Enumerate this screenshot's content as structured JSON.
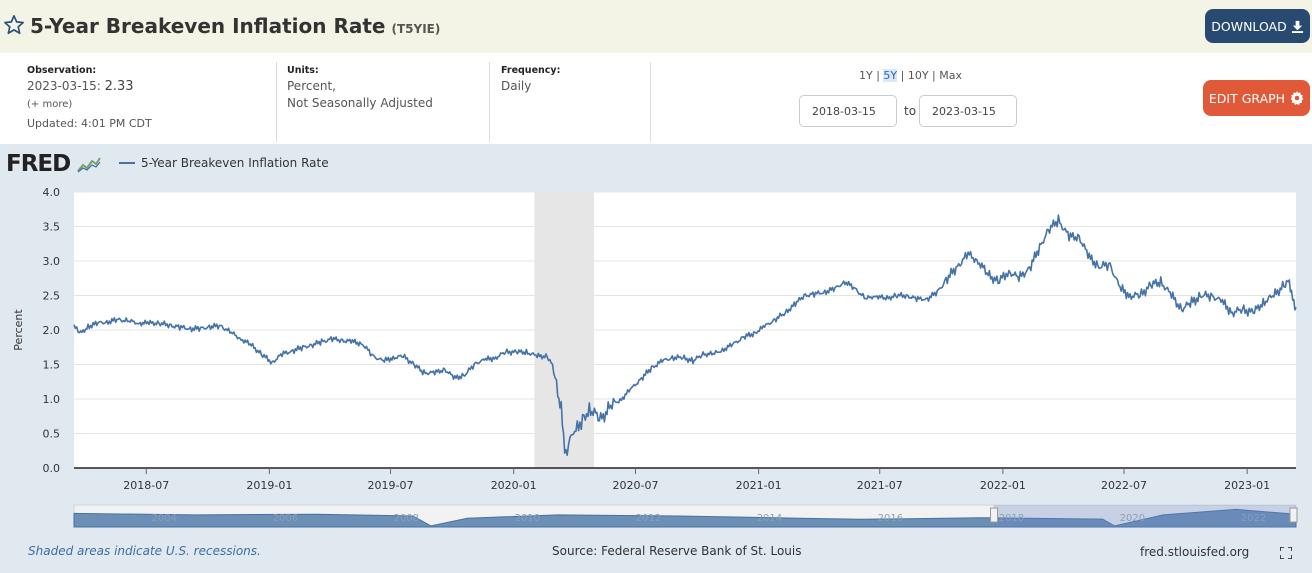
{
  "header": {
    "title": "5-Year Breakeven Inflation Rate",
    "series_id": "(T5YIE)",
    "download_label": "DOWNLOAD",
    "icons": {
      "favorite": "star-icon",
      "download": "download-icon"
    }
  },
  "info": {
    "observation_label": "Observation:",
    "observation_date": "2023-03-15:",
    "observation_value": "2.33",
    "more_link": "(+ more)",
    "updated": "Updated: 4:01 PM CDT",
    "units_label": "Units:",
    "units_line1": "Percent,",
    "units_line2": "Not Seasonally Adjusted",
    "frequency_label": "Frequency:",
    "frequency_value": "Daily"
  },
  "range_selector": {
    "options": [
      "1Y",
      "5Y",
      "10Y",
      "Max"
    ],
    "selected": "5Y",
    "start_date": "2018-03-15",
    "end_date": "2023-03-15",
    "to_label": "to"
  },
  "edit_graph_label": "EDIT GRAPH",
  "logo_text": "FRED",
  "footer": {
    "recession_note": "Shaded areas indicate U.S. recessions.",
    "source": "Source: Federal Reserve Bank of St. Louis",
    "site": "fred.stlouisfed.org"
  },
  "colors": {
    "series": "#4572a7",
    "download_button": "#294a70",
    "edit_button": "#e05a3a",
    "header_bg": "#f4f4e6",
    "recession": "#e6e6e6"
  },
  "chart_data": {
    "type": "line",
    "title": "",
    "xlabel": "",
    "ylabel": "Percent",
    "ylim": [
      0,
      4
    ],
    "yticks": [
      0.0,
      0.5,
      1.0,
      1.5,
      2.0,
      2.5,
      3.0,
      3.5,
      4.0
    ],
    "xlim": [
      "2018-03-15",
      "2023-03-15"
    ],
    "xticks": [
      "2018-07",
      "2019-01",
      "2019-07",
      "2020-01",
      "2020-07",
      "2021-01",
      "2021-07",
      "2022-01",
      "2022-07",
      "2023-01"
    ],
    "grid": true,
    "legend_placement": "top-left",
    "recessions": [
      {
        "start": "2020-02-01",
        "end": "2020-04-30"
      }
    ],
    "series": [
      {
        "name": "5-Year Breakeven Inflation Rate",
        "points": [
          [
            "2018-03-15",
            2.05
          ],
          [
            "2018-03-25",
            1.95
          ],
          [
            "2018-04-05",
            2.05
          ],
          [
            "2018-04-20",
            2.1
          ],
          [
            "2018-05-05",
            2.12
          ],
          [
            "2018-05-20",
            2.15
          ],
          [
            "2018-06-05",
            2.13
          ],
          [
            "2018-06-20",
            2.1
          ],
          [
            "2018-07-05",
            2.1
          ],
          [
            "2018-07-20",
            2.1
          ],
          [
            "2018-08-05",
            2.07
          ],
          [
            "2018-08-20",
            2.04
          ],
          [
            "2018-09-05",
            2.02
          ],
          [
            "2018-09-20",
            2.02
          ],
          [
            "2018-10-05",
            2.05
          ],
          [
            "2018-10-20",
            2.06
          ],
          [
            "2018-11-05",
            1.96
          ],
          [
            "2018-11-20",
            1.87
          ],
          [
            "2018-12-05",
            1.78
          ],
          [
            "2018-12-20",
            1.65
          ],
          [
            "2019-01-05",
            1.53
          ],
          [
            "2019-01-20",
            1.65
          ],
          [
            "2019-02-05",
            1.7
          ],
          [
            "2019-02-20",
            1.75
          ],
          [
            "2019-03-05",
            1.78
          ],
          [
            "2019-03-20",
            1.83
          ],
          [
            "2019-04-05",
            1.87
          ],
          [
            "2019-04-20",
            1.85
          ],
          [
            "2019-05-05",
            1.83
          ],
          [
            "2019-05-20",
            1.8
          ],
          [
            "2019-06-05",
            1.62
          ],
          [
            "2019-06-20",
            1.55
          ],
          [
            "2019-07-05",
            1.6
          ],
          [
            "2019-07-20",
            1.62
          ],
          [
            "2019-08-05",
            1.5
          ],
          [
            "2019-08-20",
            1.38
          ],
          [
            "2019-09-05",
            1.38
          ],
          [
            "2019-09-20",
            1.43
          ],
          [
            "2019-10-05",
            1.3
          ],
          [
            "2019-10-20",
            1.35
          ],
          [
            "2019-11-05",
            1.52
          ],
          [
            "2019-11-20",
            1.57
          ],
          [
            "2019-12-05",
            1.6
          ],
          [
            "2019-12-20",
            1.68
          ],
          [
            "2020-01-05",
            1.68
          ],
          [
            "2020-01-20",
            1.68
          ],
          [
            "2020-02-05",
            1.62
          ],
          [
            "2020-02-20",
            1.62
          ],
          [
            "2020-02-28",
            1.5
          ],
          [
            "2020-03-05",
            1.2
          ],
          [
            "2020-03-12",
            0.85
          ],
          [
            "2020-03-19",
            0.14
          ],
          [
            "2020-03-25",
            0.4
          ],
          [
            "2020-04-01",
            0.5
          ],
          [
            "2020-04-15",
            0.75
          ],
          [
            "2020-04-25",
            0.85
          ],
          [
            "2020-05-10",
            0.7
          ],
          [
            "2020-05-25",
            0.9
          ],
          [
            "2020-06-10",
            1.0
          ],
          [
            "2020-06-25",
            1.15
          ],
          [
            "2020-07-10",
            1.3
          ],
          [
            "2020-07-25",
            1.45
          ],
          [
            "2020-08-10",
            1.55
          ],
          [
            "2020-08-25",
            1.6
          ],
          [
            "2020-09-10",
            1.6
          ],
          [
            "2020-09-25",
            1.55
          ],
          [
            "2020-10-10",
            1.65
          ],
          [
            "2020-10-25",
            1.65
          ],
          [
            "2020-11-10",
            1.72
          ],
          [
            "2020-11-25",
            1.8
          ],
          [
            "2020-12-10",
            1.9
          ],
          [
            "2020-12-25",
            1.95
          ],
          [
            "2021-01-10",
            2.05
          ],
          [
            "2021-01-25",
            2.15
          ],
          [
            "2021-02-10",
            2.25
          ],
          [
            "2021-02-25",
            2.38
          ],
          [
            "2021-03-10",
            2.5
          ],
          [
            "2021-03-25",
            2.52
          ],
          [
            "2021-04-10",
            2.55
          ],
          [
            "2021-04-25",
            2.6
          ],
          [
            "2021-05-10",
            2.7
          ],
          [
            "2021-05-25",
            2.6
          ],
          [
            "2021-06-10",
            2.45
          ],
          [
            "2021-06-25",
            2.5
          ],
          [
            "2021-07-10",
            2.45
          ],
          [
            "2021-07-25",
            2.5
          ],
          [
            "2021-08-10",
            2.5
          ],
          [
            "2021-08-25",
            2.45
          ],
          [
            "2021-09-10",
            2.45
          ],
          [
            "2021-09-25",
            2.55
          ],
          [
            "2021-10-10",
            2.75
          ],
          [
            "2021-10-25",
            2.92
          ],
          [
            "2021-11-10",
            3.1
          ],
          [
            "2021-11-25",
            3.0
          ],
          [
            "2021-12-10",
            2.8
          ],
          [
            "2021-12-25",
            2.7
          ],
          [
            "2022-01-10",
            2.85
          ],
          [
            "2022-01-25",
            2.75
          ],
          [
            "2022-02-10",
            2.9
          ],
          [
            "2022-02-25",
            3.2
          ],
          [
            "2022-03-10",
            3.45
          ],
          [
            "2022-03-25",
            3.59
          ],
          [
            "2022-04-10",
            3.35
          ],
          [
            "2022-04-25",
            3.35
          ],
          [
            "2022-05-10",
            3.05
          ],
          [
            "2022-05-25",
            2.92
          ],
          [
            "2022-06-10",
            2.95
          ],
          [
            "2022-06-25",
            2.6
          ],
          [
            "2022-07-10",
            2.5
          ],
          [
            "2022-07-25",
            2.5
          ],
          [
            "2022-08-10",
            2.65
          ],
          [
            "2022-08-25",
            2.7
          ],
          [
            "2022-09-10",
            2.5
          ],
          [
            "2022-09-25",
            2.3
          ],
          [
            "2022-10-10",
            2.4
          ],
          [
            "2022-10-25",
            2.5
          ],
          [
            "2022-11-10",
            2.5
          ],
          [
            "2022-11-25",
            2.4
          ],
          [
            "2022-12-10",
            2.25
          ],
          [
            "2022-12-25",
            2.3
          ],
          [
            "2023-01-10",
            2.25
          ],
          [
            "2023-01-25",
            2.4
          ],
          [
            "2023-02-10",
            2.5
          ],
          [
            "2023-02-25",
            2.65
          ],
          [
            "2023-03-05",
            2.72
          ],
          [
            "2023-03-10",
            2.45
          ],
          [
            "2023-03-15",
            2.33
          ]
        ]
      }
    ]
  },
  "navigator": {
    "labels": [
      "2004",
      "2006",
      "2008",
      "2010",
      "2012",
      "2014",
      "2016",
      "2018",
      "2020",
      "2022"
    ],
    "range": [
      "2003-01-02",
      "2023-03-15"
    ],
    "selected": [
      "2018-03-15",
      "2023-03-15"
    ]
  }
}
